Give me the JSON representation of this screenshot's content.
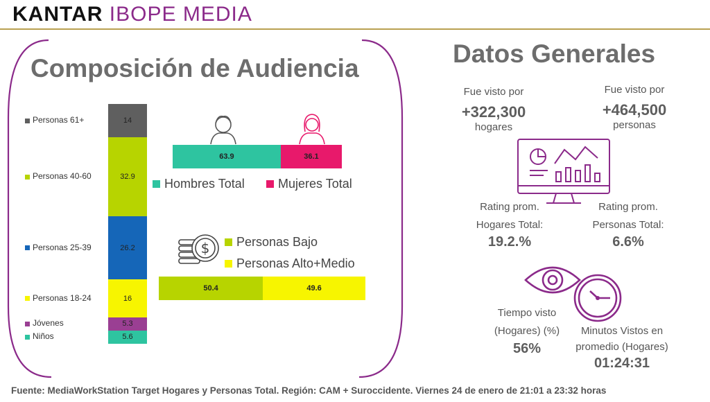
{
  "header": {
    "logo_kantar": "KANTAR",
    "logo_ibope": "IBOPE MEDIA"
  },
  "left_panel": {
    "title": "Composición de Audiencia",
    "gender_legend": {
      "male": "Hombres Total",
      "female": "Mujeres Total"
    },
    "nse_legend": {
      "low": "Personas Bajo",
      "high": "Personas Alto+Medio"
    }
  },
  "right_panel": {
    "title": "Datos Generales",
    "seen_by_households": {
      "label": "Fue visto por",
      "value": "+322,300",
      "unit": "hogares"
    },
    "seen_by_people": {
      "label": "Fue visto por",
      "value": "+464,500",
      "unit": "personas"
    },
    "rating_households": {
      "label1": "Rating prom.",
      "label2": "Hogares Total:",
      "value": "19.2.%"
    },
    "rating_people": {
      "label1": "Rating prom.",
      "label2": "Personas Total:",
      "value": "6.6%"
    },
    "time_seen": {
      "label1": "Tiempo visto",
      "label2": "(Hogares) (%)",
      "value": "56%"
    },
    "minutes_seen": {
      "label1": "Minutos Vistos en",
      "label2": "promedio (Hogares)",
      "value": "01:24:31"
    }
  },
  "footer": "Fuente: MediaWorkStation Target Hogares y Personas Total. Región: CAM + Suroccidente. Viernes 24 de enero de 21:01 a 23:32 horas",
  "chart_data": [
    {
      "type": "bar",
      "stacked": true,
      "orientation": "vertical",
      "categories": [
        "Niños",
        "Jóvenes",
        "Personas 18-24",
        "Personas 25-39",
        "Personas 40-60",
        "Personas 61+"
      ],
      "values": [
        5.6,
        5.3,
        16,
        26.2,
        32.9,
        14
      ],
      "labels": [
        "5.6",
        "5.3",
        "16",
        "26.2",
        "32.9",
        "14"
      ],
      "colors": [
        "#2ec4a0",
        "#9a3f93",
        "#f7f500",
        "#1566b8",
        "#b7d400",
        "#5f5f5f"
      ],
      "legend": "left"
    },
    {
      "type": "bar",
      "stacked": true,
      "orientation": "horizontal",
      "series": [
        {
          "name": "Hombres Total",
          "value": 63.9,
          "label": "63.9",
          "color": "#2ec4a0"
        },
        {
          "name": "Mujeres Total",
          "value": 36.1,
          "label": "36.1",
          "color": "#e8196b"
        }
      ]
    },
    {
      "type": "bar",
      "stacked": true,
      "orientation": "horizontal",
      "series": [
        {
          "name": "Personas Bajo",
          "value": 50.4,
          "label": "50.4",
          "color": "#b7d400"
        },
        {
          "name": "Personas Alto+Medio",
          "value": 49.6,
          "label": "49.6",
          "color": "#f7f500"
        }
      ]
    }
  ]
}
